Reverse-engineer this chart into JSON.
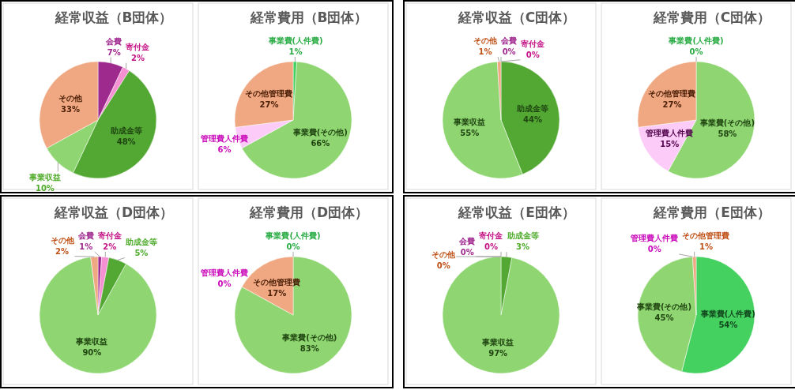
{
  "chart_data": [
    {
      "type": "pie",
      "title": "経常収益（B団体）",
      "categories": [
        "会費",
        "寄付金",
        "助成金等",
        "事業収益",
        "その他"
      ],
      "values": [
        7,
        2,
        48,
        10,
        33
      ],
      "colors": [
        "#9e2a8e",
        "#f590d2",
        "#52a832",
        "#8fd672",
        "#f0a882"
      ],
      "value_labels": [
        "7%",
        "2%",
        "48%",
        "10%",
        "33%"
      ]
    },
    {
      "type": "pie",
      "title": "経常費用（B団体）",
      "categories": [
        "事業費(人件費)",
        "事業費(その他)",
        "管理費人件費",
        "その他管理費"
      ],
      "values": [
        1,
        66,
        6,
        27
      ],
      "colors": [
        "#44d160",
        "#8fd672",
        "#fccbf8",
        "#f0a882"
      ],
      "value_labels": [
        "1%",
        "66%",
        "6%",
        "27%"
      ]
    },
    {
      "type": "pie",
      "title": "経常収益（C団体）",
      "categories": [
        "会費",
        "寄付金",
        "助成金等",
        "事業収益",
        "その他"
      ],
      "values": [
        0,
        0,
        44,
        55,
        1
      ],
      "colors": [
        "#9e2a8e",
        "#f590d2",
        "#52a832",
        "#8fd672",
        "#f0a882"
      ],
      "value_labels": [
        "0%",
        "0%",
        "44%",
        "55%",
        "1%"
      ]
    },
    {
      "type": "pie",
      "title": "経常費用（C団体）",
      "categories": [
        "事業費(人件費)",
        "事業費(その他)",
        "管理費人件費",
        "その他管理費"
      ],
      "values": [
        0,
        58,
        15,
        27
      ],
      "colors": [
        "#44d160",
        "#8fd672",
        "#fccbf8",
        "#f0a882"
      ],
      "value_labels": [
        "0%",
        "58%",
        "15%",
        "27%"
      ]
    },
    {
      "type": "pie",
      "title": "経常収益（D団体）",
      "categories": [
        "会費",
        "寄付金",
        "助成金等",
        "事業収益",
        "その他"
      ],
      "values": [
        1,
        2,
        5,
        90,
        2
      ],
      "colors": [
        "#9e2a8e",
        "#f590d2",
        "#52a832",
        "#8fd672",
        "#f0a882"
      ],
      "value_labels": [
        "1%",
        "2%",
        "5%",
        "90%",
        "2%"
      ]
    },
    {
      "type": "pie",
      "title": "経常費用（D団体）",
      "categories": [
        "事業費(人件費)",
        "事業費(その他)",
        "管理費人件費",
        "その他管理費"
      ],
      "values": [
        0,
        83,
        0,
        17
      ],
      "colors": [
        "#44d160",
        "#8fd672",
        "#fccbf8",
        "#f0a882"
      ],
      "value_labels": [
        "0%",
        "83%",
        "0%",
        "17%"
      ]
    },
    {
      "type": "pie",
      "title": "経常収益（E団体）",
      "categories": [
        "会費",
        "寄付金",
        "助成金等",
        "事業収益",
        "その他"
      ],
      "values": [
        0,
        0,
        3,
        97,
        0
      ],
      "colors": [
        "#9e2a8e",
        "#f590d2",
        "#52a832",
        "#8fd672",
        "#f0a882"
      ],
      "value_labels": [
        "0%",
        "0%",
        "3%",
        "97%",
        "0%"
      ]
    },
    {
      "type": "pie",
      "title": "経常費用（E団体）",
      "categories": [
        "事業費(人件費)",
        "事業費(その他)",
        "管理費人件費",
        "その他管理費"
      ],
      "values": [
        54,
        45,
        0,
        1
      ],
      "colors": [
        "#44d160",
        "#8fd672",
        "#fccbf8",
        "#f0a882"
      ],
      "value_labels": [
        "54%",
        "45%",
        "0%",
        "1%"
      ]
    }
  ]
}
